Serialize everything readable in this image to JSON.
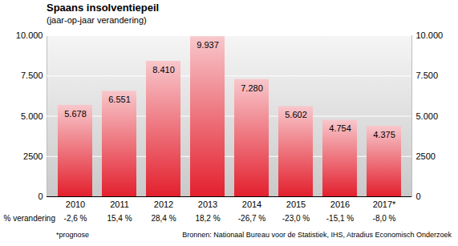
{
  "chart_data": {
    "type": "bar",
    "title": "Spaans insolventiepeil",
    "subtitle": "(jaar-op-jaar verandering)",
    "categories": [
      "2010",
      "2011",
      "2012",
      "2013",
      "2014",
      "2015",
      "2016",
      "2017*"
    ],
    "values": [
      5678,
      6551,
      8410,
      9937,
      7280,
      5602,
      4754,
      4375
    ],
    "value_labels": [
      "5.678",
      "6.551",
      "8.410",
      "9.937",
      "7.280",
      "5.602",
      "4.754",
      "4.375"
    ],
    "data_labels": true,
    "color": "#e3202e",
    "ylim": [
      0,
      10000
    ],
    "yticks": [
      0,
      {
        "value": 2500,
        "label": "2500"
      },
      {
        "value": 5000,
        "label": "5.000"
      },
      {
        "value": 7500,
        "label": "7.500"
      },
      {
        "value": 10000,
        "label": "10.000"
      }
    ],
    "grid": true,
    "change_title": "% verandering",
    "changes": [
      -2.6,
      15.4,
      28.4,
      18.2,
      -26.7,
      -23.0,
      -15.1,
      -8.0
    ],
    "change_labels": [
      "-2,6 %",
      "15,4 %",
      "28,4 %",
      "18,2 %",
      "-26,7 %",
      "-23,0 %",
      "-15,1 %",
      "-8,0 %"
    ],
    "note": "*prognose",
    "source": "Bronnen: Nationaal Bureau voor de Statistiek, IHS, Atradius Economisch Onderzoek"
  }
}
